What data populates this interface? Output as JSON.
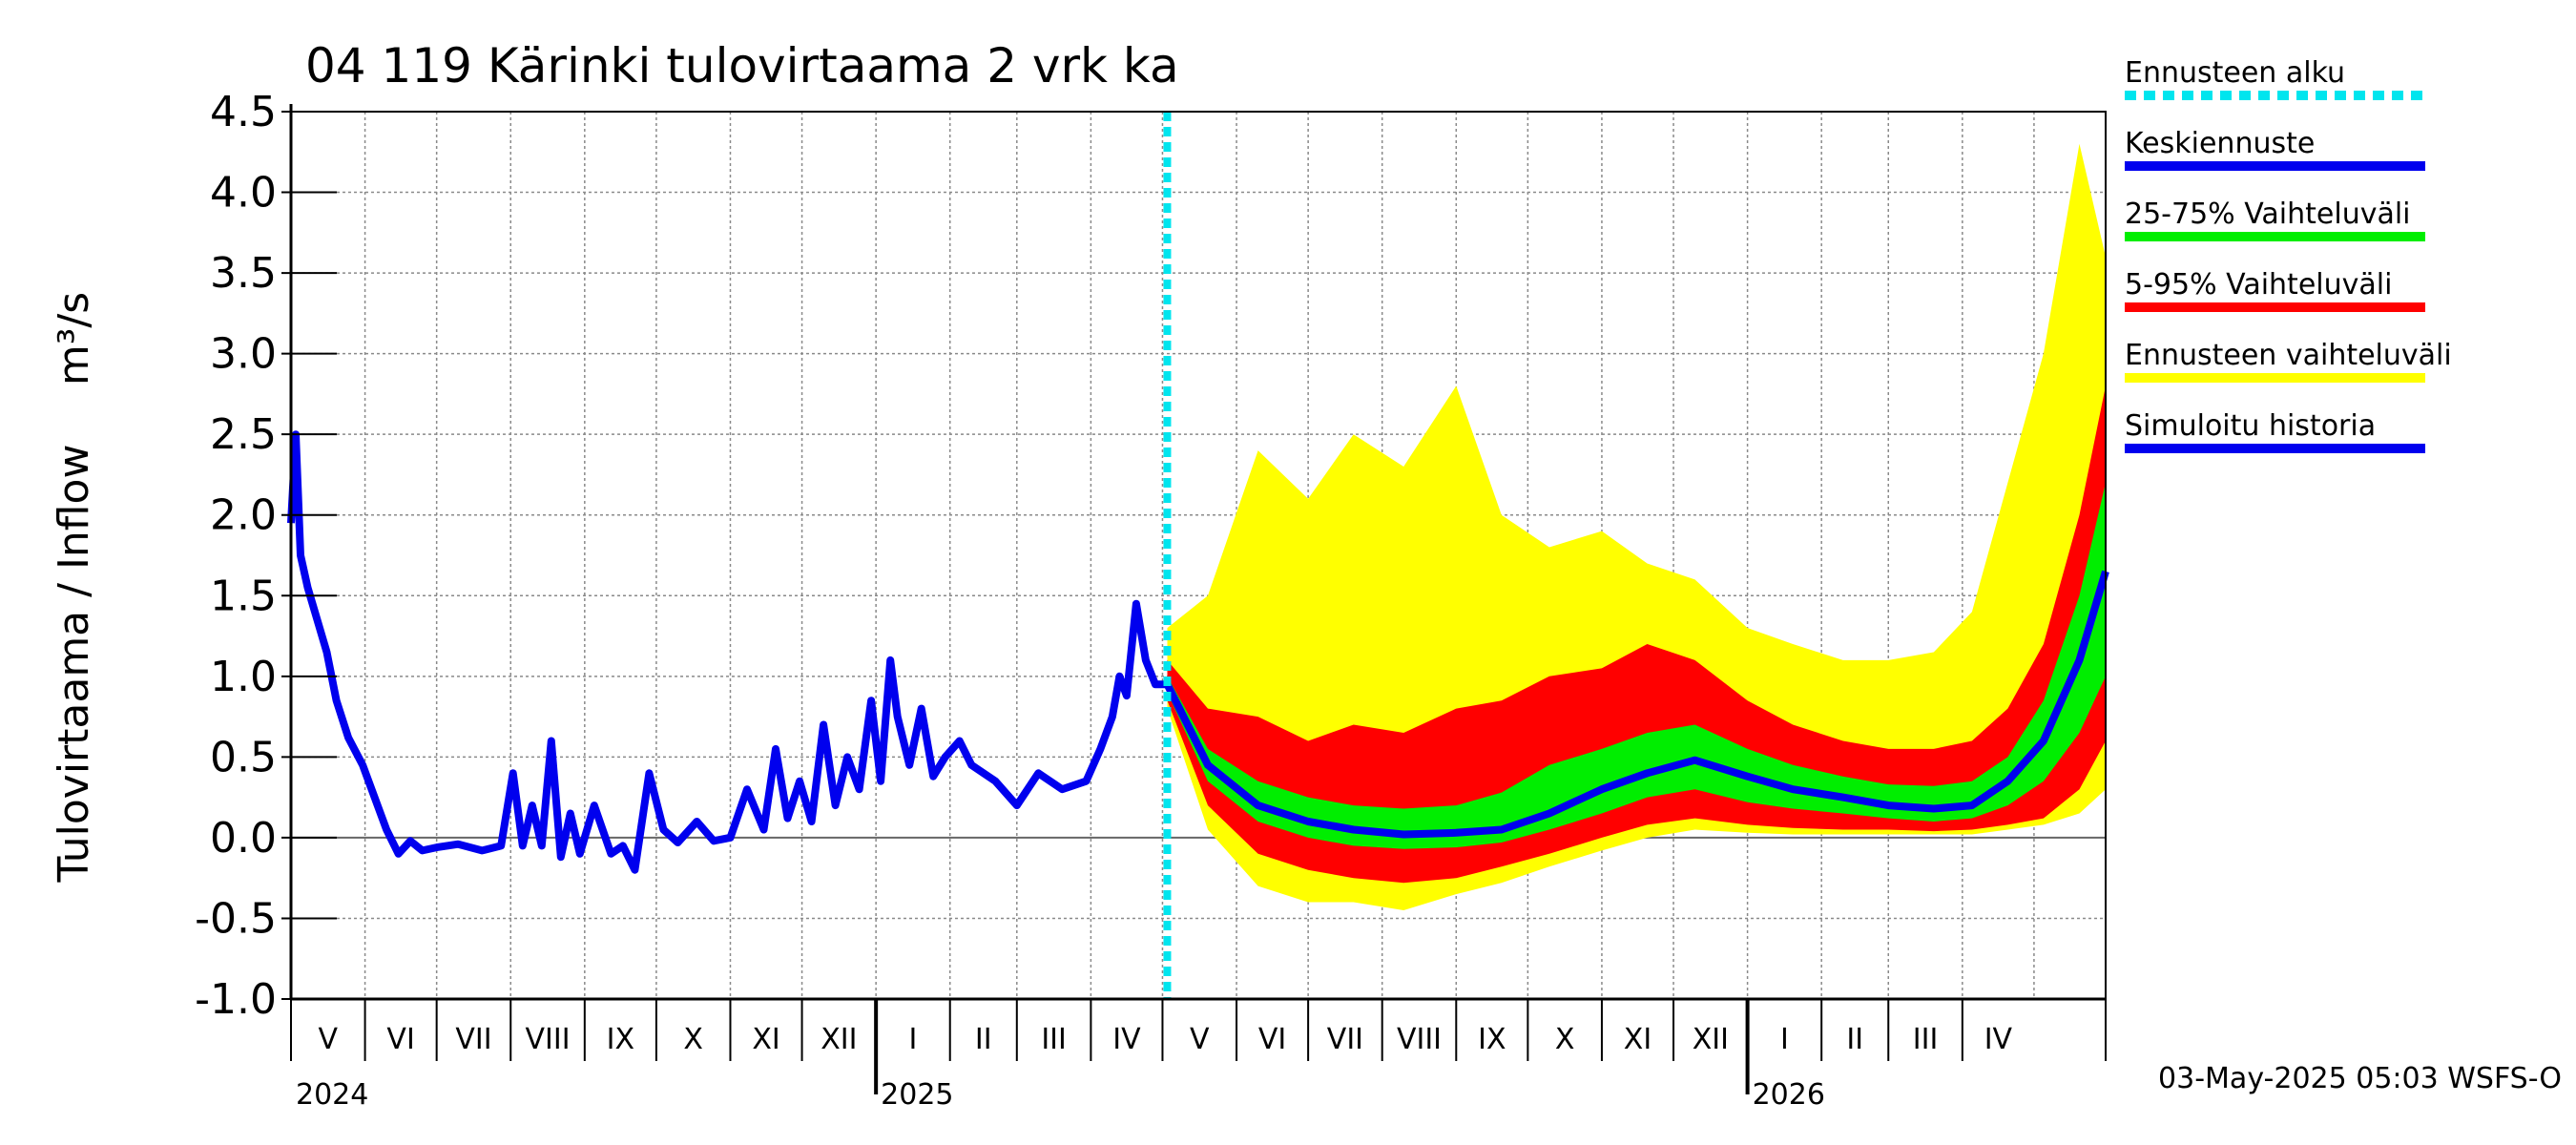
{
  "chart_data": {
    "type": "area",
    "title": "04 119 Kärinki tulovirtaama 2 vrk ka",
    "ylabel": "Tulovirtaama / Inflow",
    "yunit": "m³/s",
    "ylim": [
      -1.0,
      4.5
    ],
    "yticks": [
      "4.5",
      "4.0",
      "3.5",
      "3.0",
      "2.5",
      "2.0",
      "1.5",
      "1.0",
      "0.5",
      "0.0",
      "-0.5",
      "-1.0"
    ],
    "xlim": [
      "2024-05-01",
      "2026-05-31"
    ],
    "grid": true,
    "forecast_start": "2025-05-03",
    "months": [
      "V",
      "VI",
      "VII",
      "VIII",
      "IX",
      "X",
      "XI",
      "XII",
      "I",
      "II",
      "III",
      "IV",
      "V",
      "VI",
      "VII",
      "VIII",
      "IX",
      "X",
      "XI",
      "XII",
      "I",
      "II",
      "III",
      "IV"
    ],
    "years": [
      {
        "label": "2024",
        "start": "2024-05-01"
      },
      {
        "label": "2025",
        "start": "2025-01-01"
      },
      {
        "label": "2026",
        "start": "2026-01-01"
      }
    ],
    "legend_position": "right",
    "legend": [
      {
        "key": "start",
        "label": "Ennusteen alku",
        "color": "#00e5ee",
        "dashed": true
      },
      {
        "key": "mean",
        "label": "Keskiennuste",
        "color": "#0000ee"
      },
      {
        "key": "p25_75",
        "label": "25-75% Vaihteluväli",
        "color": "#00ee00"
      },
      {
        "key": "p5_95",
        "label": "5-95% Vaihteluväli",
        "color": "#ff0000"
      },
      {
        "key": "range",
        "label": "Ennusteen vaihteluväli",
        "color": "#ffff00"
      },
      {
        "key": "history",
        "label": "Simuloitu historia",
        "color": "#0000ee"
      }
    ],
    "history": {
      "x": [
        "2024-05-01",
        "2024-05-03",
        "2024-05-05",
        "2024-05-08",
        "2024-05-12",
        "2024-05-16",
        "2024-05-20",
        "2024-05-25",
        "2024-05-31",
        "2024-06-05",
        "2024-06-10",
        "2024-06-15",
        "2024-06-20",
        "2024-06-25",
        "2024-07-01",
        "2024-07-10",
        "2024-07-20",
        "2024-07-28",
        "2024-08-02",
        "2024-08-06",
        "2024-08-10",
        "2024-08-14",
        "2024-08-18",
        "2024-08-22",
        "2024-08-26",
        "2024-08-30",
        "2024-09-05",
        "2024-09-12",
        "2024-09-17",
        "2024-09-22",
        "2024-09-28",
        "2024-10-04",
        "2024-10-10",
        "2024-10-18",
        "2024-10-25",
        "2024-11-01",
        "2024-11-08",
        "2024-11-15",
        "2024-11-20",
        "2024-11-25",
        "2024-11-30",
        "2024-12-05",
        "2024-12-10",
        "2024-12-15",
        "2024-12-20",
        "2024-12-25",
        "2024-12-30",
        "2025-01-03",
        "2025-01-07",
        "2025-01-10",
        "2025-01-15",
        "2025-01-20",
        "2025-01-25",
        "2025-01-30",
        "2025-02-05",
        "2025-02-10",
        "2025-02-20",
        "2025-03-01",
        "2025-03-10",
        "2025-03-20",
        "2025-03-30",
        "2025-04-05",
        "2025-04-10",
        "2025-04-13",
        "2025-04-16",
        "2025-04-20",
        "2025-04-24",
        "2025-04-28",
        "2025-05-03"
      ],
      "y": [
        1.95,
        2.5,
        1.75,
        1.55,
        1.35,
        1.15,
        0.85,
        0.62,
        0.45,
        0.25,
        0.05,
        -0.1,
        -0.02,
        -0.08,
        -0.06,
        -0.04,
        -0.08,
        -0.05,
        0.4,
        -0.05,
        0.2,
        -0.05,
        0.6,
        -0.12,
        0.15,
        -0.1,
        0.2,
        -0.1,
        -0.05,
        -0.2,
        0.4,
        0.05,
        -0.03,
        0.1,
        -0.02,
        0.0,
        0.3,
        0.05,
        0.55,
        0.12,
        0.35,
        0.1,
        0.7,
        0.2,
        0.5,
        0.3,
        0.85,
        0.35,
        1.1,
        0.75,
        0.45,
        0.8,
        0.38,
        0.5,
        0.6,
        0.45,
        0.35,
        0.2,
        0.4,
        0.3,
        0.35,
        0.55,
        0.75,
        1.0,
        0.88,
        1.45,
        1.1,
        0.95,
        0.95
      ]
    },
    "forecast": {
      "x": [
        "2025-05-03",
        "2025-05-20",
        "2025-06-10",
        "2025-07-01",
        "2025-07-20",
        "2025-08-10",
        "2025-09-01",
        "2025-09-20",
        "2025-10-10",
        "2025-11-01",
        "2025-11-20",
        "2025-12-10",
        "2026-01-01",
        "2026-01-20",
        "2026-02-10",
        "2026-03-01",
        "2026-03-20",
        "2026-04-05",
        "2026-04-20",
        "2026-05-05",
        "2026-05-20",
        "2026-05-31"
      ],
      "mean": [
        0.95,
        0.45,
        0.2,
        0.1,
        0.05,
        0.02,
        0.03,
        0.05,
        0.15,
        0.3,
        0.4,
        0.48,
        0.38,
        0.3,
        0.25,
        0.2,
        0.18,
        0.2,
        0.35,
        0.6,
        1.1,
        1.65
      ],
      "p25": [
        0.9,
        0.35,
        0.1,
        0.0,
        -0.05,
        -0.07,
        -0.06,
        -0.03,
        0.05,
        0.15,
        0.25,
        0.3,
        0.22,
        0.18,
        0.15,
        0.12,
        0.1,
        0.12,
        0.2,
        0.35,
        0.65,
        1.0
      ],
      "p75": [
        1.0,
        0.55,
        0.35,
        0.25,
        0.2,
        0.18,
        0.2,
        0.28,
        0.45,
        0.55,
        0.65,
        0.7,
        0.55,
        0.45,
        0.38,
        0.33,
        0.32,
        0.35,
        0.5,
        0.85,
        1.5,
        2.2
      ],
      "p5": [
        0.85,
        0.2,
        -0.1,
        -0.2,
        -0.25,
        -0.28,
        -0.25,
        -0.18,
        -0.1,
        0.0,
        0.08,
        0.12,
        0.08,
        0.06,
        0.05,
        0.05,
        0.04,
        0.05,
        0.08,
        0.12,
        0.3,
        0.6
      ],
      "p95": [
        1.1,
        0.8,
        0.75,
        0.6,
        0.7,
        0.65,
        0.8,
        0.85,
        1.0,
        1.05,
        1.2,
        1.1,
        0.85,
        0.7,
        0.6,
        0.55,
        0.55,
        0.6,
        0.8,
        1.2,
        2.0,
        2.8
      ],
      "min": [
        0.8,
        0.05,
        -0.3,
        -0.4,
        -0.4,
        -0.45,
        -0.35,
        -0.28,
        -0.18,
        -0.08,
        0.0,
        0.05,
        0.03,
        0.02,
        0.02,
        0.02,
        0.02,
        0.02,
        0.05,
        0.08,
        0.15,
        0.3
      ],
      "max": [
        1.3,
        1.5,
        2.4,
        2.1,
        2.5,
        2.3,
        2.8,
        2.0,
        1.8,
        1.9,
        1.7,
        1.6,
        1.3,
        1.2,
        1.1,
        1.1,
        1.15,
        1.4,
        2.2,
        3.0,
        4.3,
        3.6
      ]
    },
    "timestamp": "03-May-2025 05:03 WSFS-O"
  }
}
